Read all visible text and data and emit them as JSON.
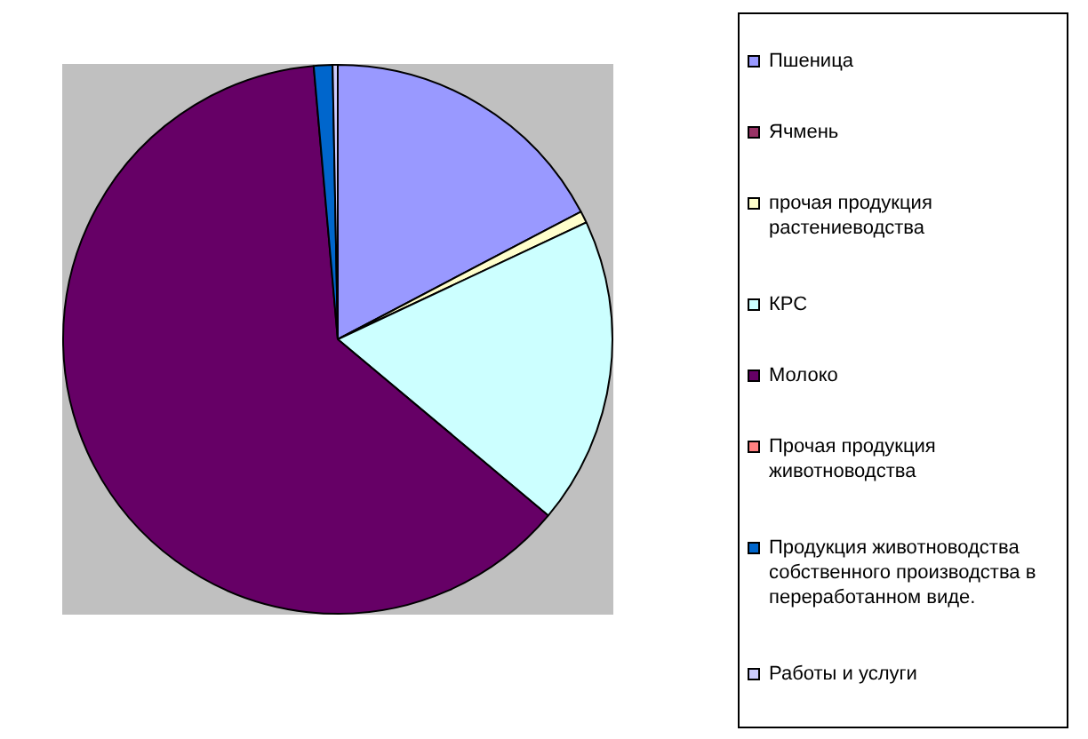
{
  "chart_data": {
    "type": "pie",
    "categories": [
      "Пшеница",
      "Ячмень",
      "прочая продукция растениеводства",
      "КРС",
      "Молоко",
      "Прочая продукция животноводства",
      "Продукция животноводства собственного производства в переработанном виде.",
      "Работы и услуги"
    ],
    "values": [
      17.3,
      0,
      0.7,
      18.1,
      62.5,
      0,
      1.1,
      0.3
    ],
    "colors": [
      "#9999ff",
      "#993366",
      "#ffffcc",
      "#ccffff",
      "#660066",
      "#ff8080",
      "#0066cc",
      "#ccccff"
    ],
    "legend": "right"
  }
}
